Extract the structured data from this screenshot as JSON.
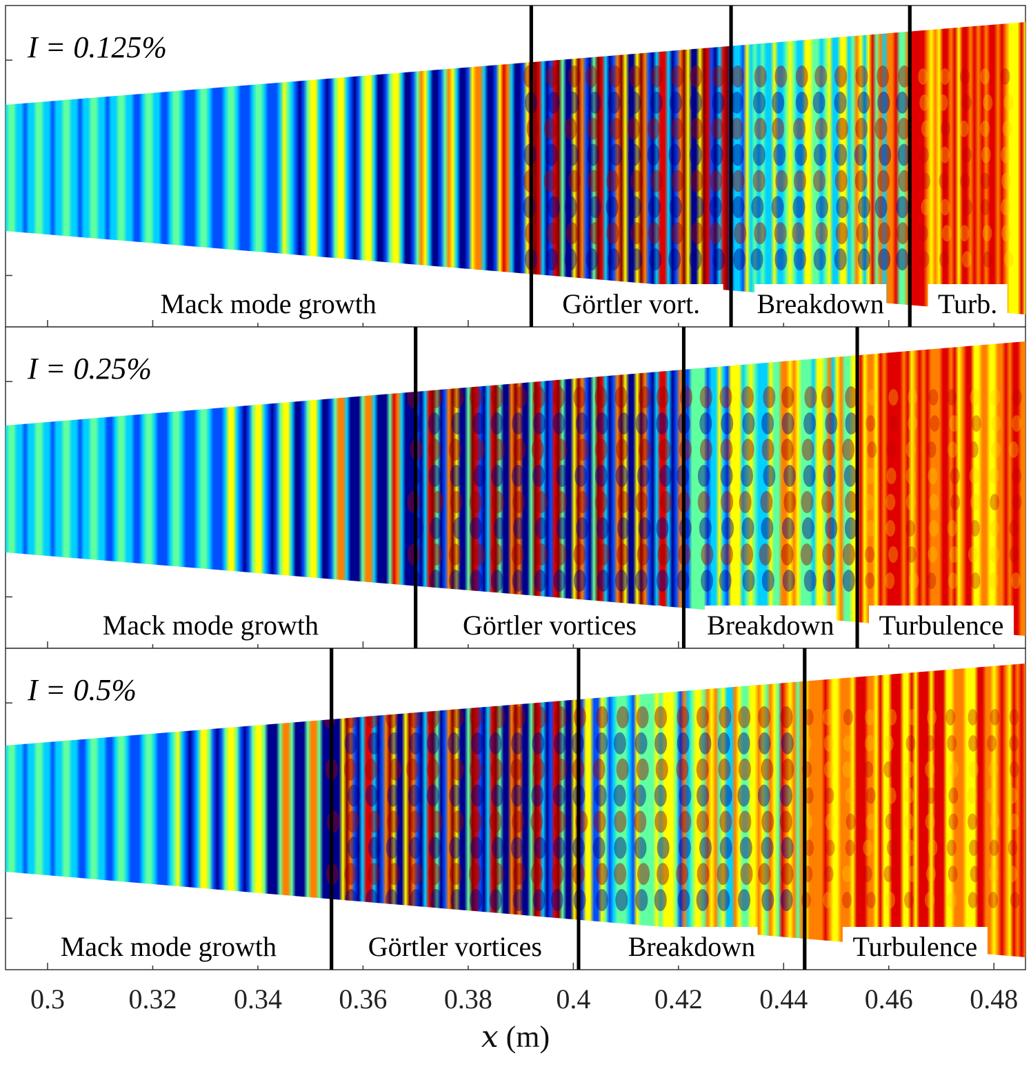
{
  "chart_data": {
    "type": "heatmap",
    "title": "",
    "xlabel_var": "x",
    "xlabel_unit": "(m)",
    "xlim": [
      0.292,
      0.486
    ],
    "xticks": [
      0.3,
      0.32,
      0.34,
      0.36,
      0.38,
      0.4,
      0.42,
      0.44,
      0.46,
      0.48
    ],
    "xtick_labels": [
      "0.3",
      "0.32",
      "0.34",
      "0.36",
      "0.38",
      "0.4",
      "0.42",
      "0.44",
      "0.46",
      "0.48"
    ],
    "panels": [
      {
        "label": "I = 0.125%",
        "intensity_percent": 0.125,
        "boundaries_x": [
          0.392,
          0.43,
          0.464
        ],
        "regions": [
          {
            "name": "Mack mode growth",
            "x_start": 0.292,
            "x_end": 0.392
          },
          {
            "name": "Görtler vort.",
            "x_start": 0.392,
            "x_end": 0.43
          },
          {
            "name": "Breakdown",
            "x_start": 0.43,
            "x_end": 0.464
          },
          {
            "name": "Turb.",
            "x_start": 0.464,
            "x_end": 0.486
          }
        ]
      },
      {
        "label": "I = 0.25%",
        "intensity_percent": 0.25,
        "boundaries_x": [
          0.37,
          0.421,
          0.454
        ],
        "regions": [
          {
            "name": "Mack mode growth",
            "x_start": 0.292,
            "x_end": 0.37
          },
          {
            "name": "Görtler vortices",
            "x_start": 0.37,
            "x_end": 0.421
          },
          {
            "name": "Breakdown",
            "x_start": 0.421,
            "x_end": 0.454
          },
          {
            "name": "Turbulence",
            "x_start": 0.454,
            "x_end": 0.486
          }
        ]
      },
      {
        "label": "I = 0.5%",
        "intensity_percent": 0.5,
        "boundaries_x": [
          0.354,
          0.401,
          0.444
        ],
        "regions": [
          {
            "name": "Mack mode growth",
            "x_start": 0.292,
            "x_end": 0.354
          },
          {
            "name": "Görtler vortices",
            "x_start": 0.354,
            "x_end": 0.401
          },
          {
            "name": "Breakdown",
            "x_start": 0.401,
            "x_end": 0.444
          },
          {
            "name": "Turbulence",
            "x_start": 0.444,
            "x_end": 0.486
          }
        ]
      }
    ],
    "colormap": [
      "#00008f",
      "#0050ff",
      "#00d0ff",
      "#60ffa0",
      "#ffff00",
      "#ff8000",
      "#e00000",
      "#800000"
    ]
  }
}
